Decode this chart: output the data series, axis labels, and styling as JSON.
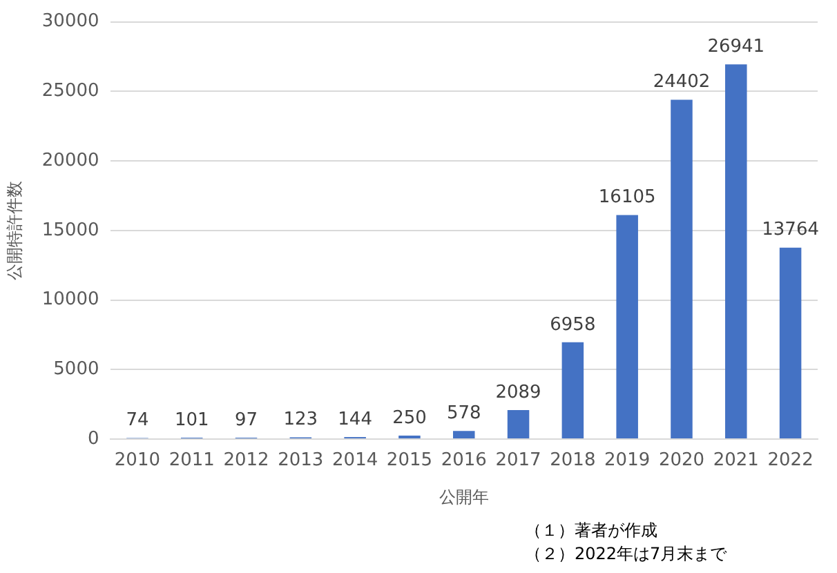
{
  "chart_data": {
    "type": "bar",
    "ylabel": "公開特許件数",
    "xlabel": "公開年",
    "categories": [
      "2010",
      "2011",
      "2012",
      "2013",
      "2014",
      "2015",
      "2016",
      "2017",
      "2018",
      "2019",
      "2020",
      "2021",
      "2022"
    ],
    "values": [
      74,
      101,
      97,
      123,
      144,
      250,
      578,
      2089,
      6958,
      16105,
      24402,
      26941,
      13764
    ],
    "color": "#4472c4",
    "ylim": [
      0,
      30000
    ],
    "yticks": [
      0,
      5000,
      10000,
      15000,
      20000,
      25000,
      30000
    ],
    "grid": "y",
    "legend": false,
    "data_labels": true,
    "annotations": [
      "（１）著者が作成",
      "（２）2022年は7月末まで"
    ]
  }
}
